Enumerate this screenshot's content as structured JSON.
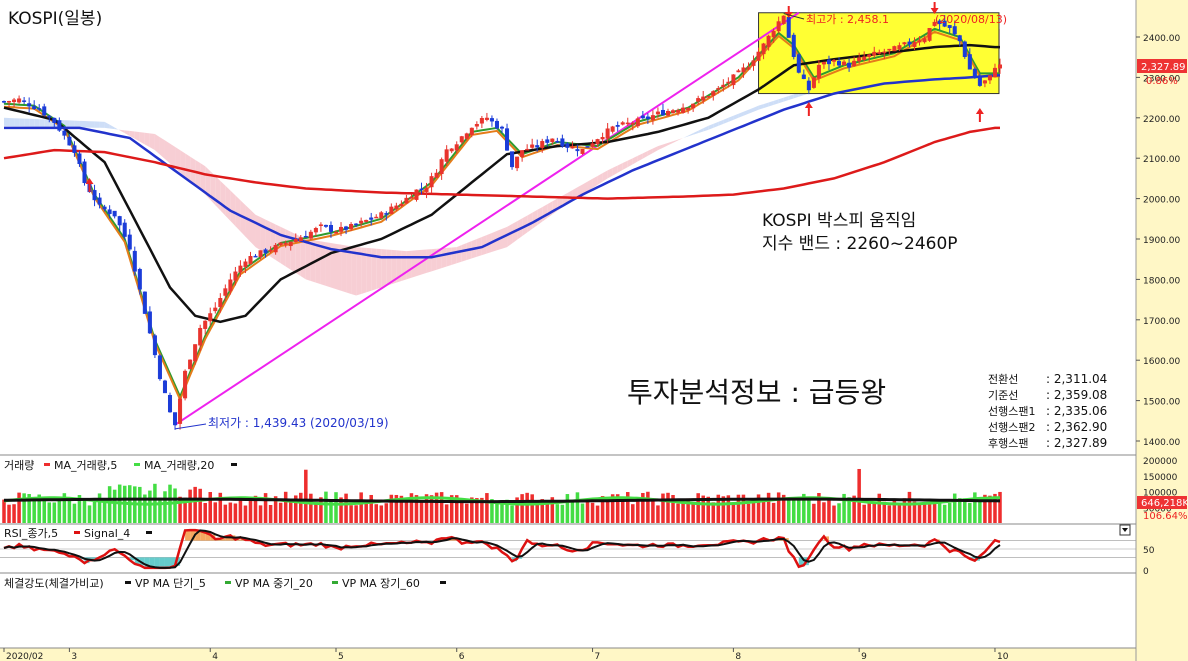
{
  "colors": {
    "axis_bg": "#fff7c6",
    "up": "#e8342d",
    "down": "#1b3cd8",
    "ma5": "#2e9b2e",
    "ma5b": "#e57c1a",
    "ma20": "#111111",
    "ma60": "#2233cc",
    "ma120": "#dd1a1a",
    "trend": "#ee22ee",
    "cloud_a": "#f6c9cf",
    "cloud_b": "#c9daf6",
    "box_fill": "#ffff33",
    "vol_up": "#ee2e2e",
    "vol_down": "#44dd44",
    "rsi": "#dd1111",
    "signal": "#111111",
    "fill_hi": "#f5a860",
    "fill_lo": "#66cccc",
    "label_red": "#ee2222",
    "label_blue": "#2233cc"
  },
  "main": {
    "title": "KOSPI(일봉)",
    "annotation_box": [
      "KOSPI 박스피 움직임",
      "지수 밴드 : 2260~2460P"
    ],
    "brand": "투자분석정보 : 급등왕",
    "high_label": "최고가 : 2,458.1",
    "high_label_suffix": "(2020/08/13)",
    "low_label": "최저가 : 1,439.43 (2020/03/19)",
    "last_price": "2,327.89",
    "last_change": "0.86%",
    "ichimoku": [
      {
        "label": "전환선",
        "value": ": 2,311.04"
      },
      {
        "label": "기준선",
        "value": ": 2,359.08"
      },
      {
        "label": "선행스팬1",
        "value": ": 2,335.06"
      },
      {
        "label": "선행스팬2",
        "value": ": 2,362.90"
      },
      {
        "label": "후행스팬",
        "value": ": 2,327.89"
      }
    ]
  },
  "volume_panel": {
    "legend": [
      {
        "text": "거래량",
        "color": "#ee2e2e"
      },
      {
        "text": "MA_거래량,5",
        "color": "#44dd44"
      },
      {
        "text": "MA_거래량,20",
        "color": "#111111"
      }
    ],
    "last_volume": "646,218K",
    "last_ratio": "106.64%"
  },
  "rsi_panel": {
    "legend": [
      {
        "text": "RSI_종가,5",
        "color": "#dd1111"
      },
      {
        "text": "Signal_4",
        "color": "#111111"
      }
    ]
  },
  "vp_panel": {
    "legend": [
      {
        "text": "체결강도(체결가비교)",
        "color": "#111111"
      },
      {
        "text": "VP MA 단기_5",
        "color": "#33aa33"
      },
      {
        "text": "VP MA 중기_20",
        "color": "#33aa33"
      },
      {
        "text": "VP MA 장기_60",
        "color": "#33aa33"
      }
    ]
  },
  "chart_data": {
    "type": "candlestick",
    "title": "KOSPI(일봉)",
    "price_axis": {
      "ylim": [
        1400,
        2460
      ],
      "ticks": [
        1400,
        1500,
        1600,
        1700,
        1800,
        1900,
        2000,
        2100,
        2200,
        2300,
        2400
      ]
    },
    "price_tick_labels": [
      "1400.00",
      "1500.00",
      "1600.00",
      "1700.00",
      "1800.00",
      "1900.00",
      "2000.00",
      "2100.00",
      "2200.00",
      "2300.00",
      "2400.00"
    ],
    "volume_axis": {
      "ticks": [
        50000,
        100000,
        150000,
        200000
      ],
      "tick_labels": [
        "50000",
        "100000",
        "150000",
        "200000"
      ]
    },
    "rsi_axis": {
      "ticks": [
        0,
        50
      ],
      "tick_labels": [
        "0",
        "50"
      ]
    },
    "x_labels": [
      {
        "label": "2020/02",
        "index": 0
      },
      {
        "label": "3",
        "index": 13
      },
      {
        "label": "4",
        "index": 41
      },
      {
        "label": "5",
        "index": 66
      },
      {
        "label": "6",
        "index": 90
      },
      {
        "label": "7",
        "index": 117
      },
      {
        "label": "8",
        "index": 145
      },
      {
        "label": "9",
        "index": 170
      },
      {
        "label": "10",
        "index": 197
      }
    ],
    "n_slots": 199,
    "anchors": [
      [
        0,
        2240
      ],
      [
        3,
        2245
      ],
      [
        7,
        2222
      ],
      [
        10,
        2190
      ],
      [
        14,
        2120
      ],
      [
        16,
        2040
      ],
      [
        19,
        1980
      ],
      [
        22,
        1960
      ],
      [
        25,
        1880
      ],
      [
        28,
        1720
      ],
      [
        31,
        1560
      ],
      [
        33,
        1470
      ],
      [
        34,
        1440
      ],
      [
        36,
        1570
      ],
      [
        39,
        1680
      ],
      [
        42,
        1730
      ],
      [
        45,
        1800
      ],
      [
        48,
        1850
      ],
      [
        52,
        1870
      ],
      [
        56,
        1890
      ],
      [
        60,
        1910
      ],
      [
        63,
        1930
      ],
      [
        66,
        1920
      ],
      [
        69,
        1930
      ],
      [
        72,
        1945
      ],
      [
        75,
        1960
      ],
      [
        79,
        1990
      ],
      [
        82,
        2020
      ],
      [
        84,
        2030
      ],
      [
        86,
        2070
      ],
      [
        88,
        2120
      ],
      [
        90,
        2140
      ],
      [
        93,
        2180
      ],
      [
        96,
        2200
      ],
      [
        99,
        2170
      ],
      [
        101,
        2080
      ],
      [
        103,
        2120
      ],
      [
        106,
        2130
      ],
      [
        109,
        2150
      ],
      [
        112,
        2130
      ],
      [
        115,
        2120
      ],
      [
        118,
        2150
      ],
      [
        121,
        2175
      ],
      [
        124,
        2185
      ],
      [
        127,
        2195
      ],
      [
        130,
        2210
      ],
      [
        133,
        2220
      ],
      [
        136,
        2230
      ],
      [
        139,
        2250
      ],
      [
        142,
        2270
      ],
      [
        145,
        2300
      ],
      [
        148,
        2330
      ],
      [
        151,
        2380
      ],
      [
        153,
        2420
      ],
      [
        155,
        2455
      ],
      [
        156,
        2400
      ],
      [
        158,
        2310
      ],
      [
        160,
        2270
      ],
      [
        162,
        2330
      ],
      [
        165,
        2340
      ],
      [
        168,
        2330
      ],
      [
        171,
        2350
      ],
      [
        174,
        2360
      ],
      [
        177,
        2370
      ],
      [
        180,
        2385
      ],
      [
        183,
        2400
      ],
      [
        185,
        2440
      ],
      [
        188,
        2420
      ],
      [
        190,
        2390
      ],
      [
        192,
        2320
      ],
      [
        194,
        2280
      ],
      [
        196,
        2300
      ],
      [
        197,
        2328
      ]
    ],
    "series": [
      {
        "name": "MA_5",
        "anchors": [
          [
            0,
            2235
          ],
          [
            6,
            2230
          ],
          [
            12,
            2180
          ],
          [
            18,
            2010
          ],
          [
            24,
            1900
          ],
          [
            30,
            1650
          ],
          [
            35,
            1510
          ],
          [
            40,
            1660
          ],
          [
            47,
            1820
          ],
          [
            55,
            1890
          ],
          [
            65,
            1915
          ],
          [
            75,
            1950
          ],
          [
            85,
            2040
          ],
          [
            93,
            2165
          ],
          [
            98,
            2175
          ],
          [
            103,
            2110
          ],
          [
            110,
            2140
          ],
          [
            118,
            2130
          ],
          [
            126,
            2190
          ],
          [
            136,
            2225
          ],
          [
            146,
            2300
          ],
          [
            154,
            2410
          ],
          [
            157,
            2380
          ],
          [
            161,
            2300
          ],
          [
            167,
            2330
          ],
          [
            177,
            2360
          ],
          [
            185,
            2420
          ],
          [
            190,
            2400
          ],
          [
            194,
            2310
          ],
          [
            197,
            2310
          ]
        ]
      },
      {
        "name": "MA_20",
        "anchors": [
          [
            0,
            2225
          ],
          [
            10,
            2195
          ],
          [
            20,
            2090
          ],
          [
            28,
            1900
          ],
          [
            33,
            1780
          ],
          [
            38,
            1710
          ],
          [
            43,
            1695
          ],
          [
            48,
            1710
          ],
          [
            55,
            1800
          ],
          [
            65,
            1865
          ],
          [
            75,
            1900
          ],
          [
            85,
            1960
          ],
          [
            93,
            2040
          ],
          [
            100,
            2110
          ],
          [
            110,
            2130
          ],
          [
            120,
            2140
          ],
          [
            130,
            2165
          ],
          [
            140,
            2200
          ],
          [
            150,
            2270
          ],
          [
            157,
            2330
          ],
          [
            165,
            2345
          ],
          [
            175,
            2360
          ],
          [
            185,
            2375
          ],
          [
            192,
            2380
          ],
          [
            197,
            2375
          ]
        ]
      },
      {
        "name": "MA_60",
        "anchors": [
          [
            0,
            2175
          ],
          [
            15,
            2175
          ],
          [
            25,
            2150
          ],
          [
            35,
            2060
          ],
          [
            45,
            1970
          ],
          [
            55,
            1910
          ],
          [
            65,
            1875
          ],
          [
            75,
            1855
          ],
          [
            85,
            1855
          ],
          [
            95,
            1880
          ],
          [
            105,
            1940
          ],
          [
            115,
            2010
          ],
          [
            125,
            2070
          ],
          [
            135,
            2120
          ],
          [
            145,
            2170
          ],
          [
            155,
            2220
          ],
          [
            165,
            2260
          ],
          [
            175,
            2285
          ],
          [
            185,
            2295
          ],
          [
            192,
            2300
          ],
          [
            197,
            2305
          ]
        ]
      },
      {
        "name": "MA_120",
        "anchors": [
          [
            0,
            2100
          ],
          [
            10,
            2120
          ],
          [
            20,
            2115
          ],
          [
            30,
            2090
          ],
          [
            40,
            2060
          ],
          [
            50,
            2040
          ],
          [
            60,
            2025
          ],
          [
            75,
            2015
          ],
          [
            90,
            2010
          ],
          [
            105,
            2005
          ],
          [
            120,
            2000
          ],
          [
            135,
            2005
          ],
          [
            145,
            2010
          ],
          [
            155,
            2025
          ],
          [
            165,
            2050
          ],
          [
            175,
            2090
          ],
          [
            185,
            2140
          ],
          [
            192,
            2165
          ],
          [
            197,
            2175
          ]
        ]
      }
    ]
  }
}
